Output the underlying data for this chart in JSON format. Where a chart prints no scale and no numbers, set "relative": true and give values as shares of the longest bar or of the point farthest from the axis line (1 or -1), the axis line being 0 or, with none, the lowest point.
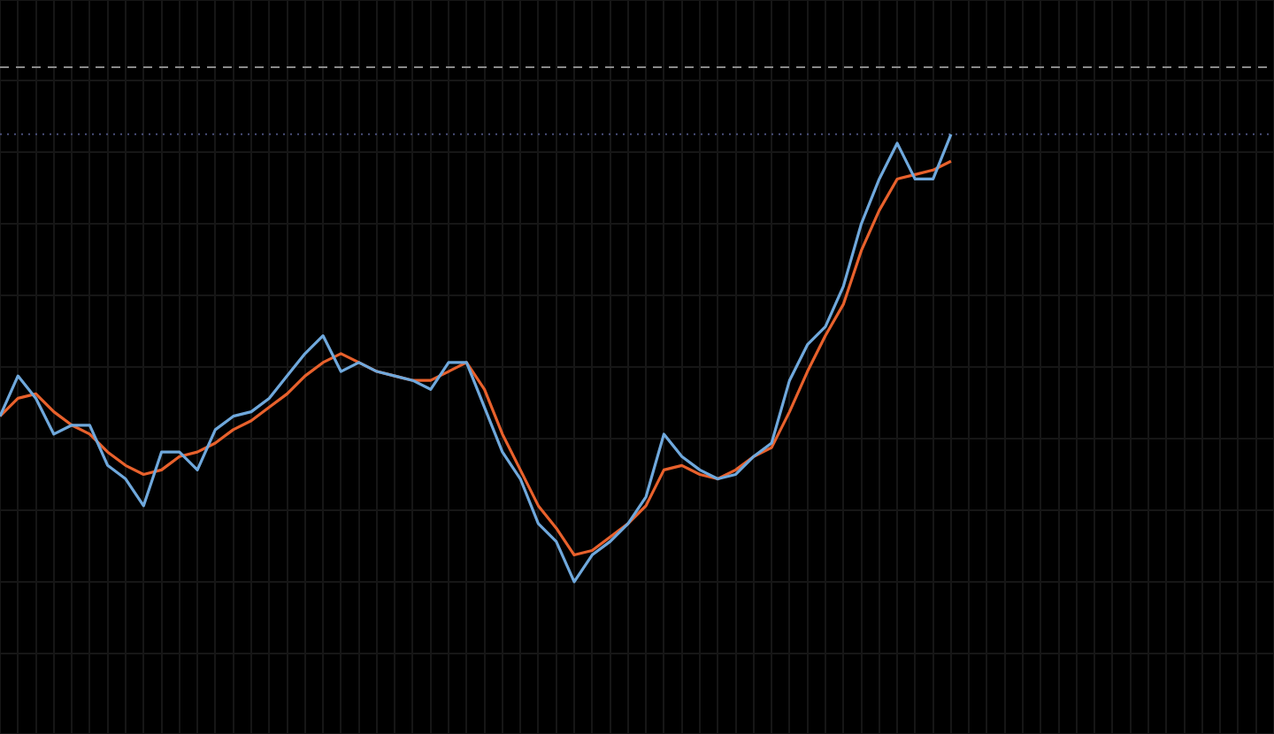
{
  "chart_data": {
    "type": "line",
    "relative": true,
    "grid": true,
    "legend": false,
    "marker": "none",
    "categories": [
      null,
      null,
      null,
      null,
      null,
      null,
      null,
      null,
      null,
      null,
      null,
      null,
      null,
      null,
      null,
      null,
      null,
      null,
      null,
      null,
      null,
      null,
      null,
      null,
      null,
      null,
      null,
      null,
      null,
      null,
      null,
      null,
      null,
      null,
      null,
      null,
      null,
      null,
      null,
      null,
      null,
      null,
      null,
      null,
      null,
      null,
      null,
      null,
      null,
      null,
      null,
      null,
      null,
      null,
      null,
      null,
      null,
      null,
      null,
      null,
      null,
      null,
      null,
      null,
      null,
      null,
      null,
      null,
      null,
      null,
      null,
      null
    ],
    "series": [
      {
        "color": "#6fa8dc",
        "values": [
          0.37,
          0.46,
          0.41,
          0.33,
          0.35,
          0.35,
          0.26,
          0.23,
          0.17,
          0.29,
          0.29,
          0.25,
          0.34,
          0.37,
          0.38,
          0.41,
          0.46,
          0.51,
          0.55,
          0.47,
          0.49,
          0.47,
          0.46,
          0.45,
          0.43,
          0.49,
          0.49,
          0.39,
          0.29,
          0.23,
          0.13,
          0.09,
          0,
          0.06,
          0.09,
          0.13,
          0.19,
          0.33,
          0.28,
          0.25,
          0.23,
          0.24,
          0.28,
          0.31,
          0.45,
          0.53,
          0.57,
          0.66,
          0.8,
          0.9,
          0.98,
          0.9,
          0.9,
          1,
          null,
          null,
          null,
          null,
          null,
          null,
          null,
          null,
          null,
          null,
          null,
          null,
          null,
          null,
          null,
          null,
          null,
          null
        ]
      },
      {
        "color": "#e8612c",
        "values": [
          0.37,
          0.41,
          0.42,
          0.38,
          0.35,
          0.33,
          0.29,
          0.26,
          0.24,
          0.25,
          0.28,
          0.29,
          0.31,
          0.34,
          0.36,
          0.39,
          0.42,
          0.46,
          0.49,
          0.51,
          0.49,
          0.47,
          0.46,
          0.45,
          0.45,
          0.47,
          0.49,
          0.43,
          0.33,
          0.25,
          0.17,
          0.12,
          0.06,
          0.07,
          0.1,
          0.13,
          0.17,
          0.25,
          0.26,
          0.24,
          0.23,
          0.25,
          0.28,
          0.3,
          0.38,
          0.47,
          0.55,
          0.62,
          0.74,
          0.83,
          0.9,
          0.91,
          0.92,
          0.94,
          null,
          null,
          null,
          null,
          null,
          null,
          null,
          null,
          null,
          null,
          null,
          null,
          null,
          null,
          null,
          null,
          null,
          null
        ]
      }
    ],
    "ref_lines": [
      {
        "axis": "y",
        "value": 1.15,
        "color": "#8a8a8a",
        "line_style": "dashed"
      },
      {
        "axis": "y",
        "value": 1,
        "color": "#4a4f7a",
        "line_style": "dotted"
      }
    ]
  }
}
